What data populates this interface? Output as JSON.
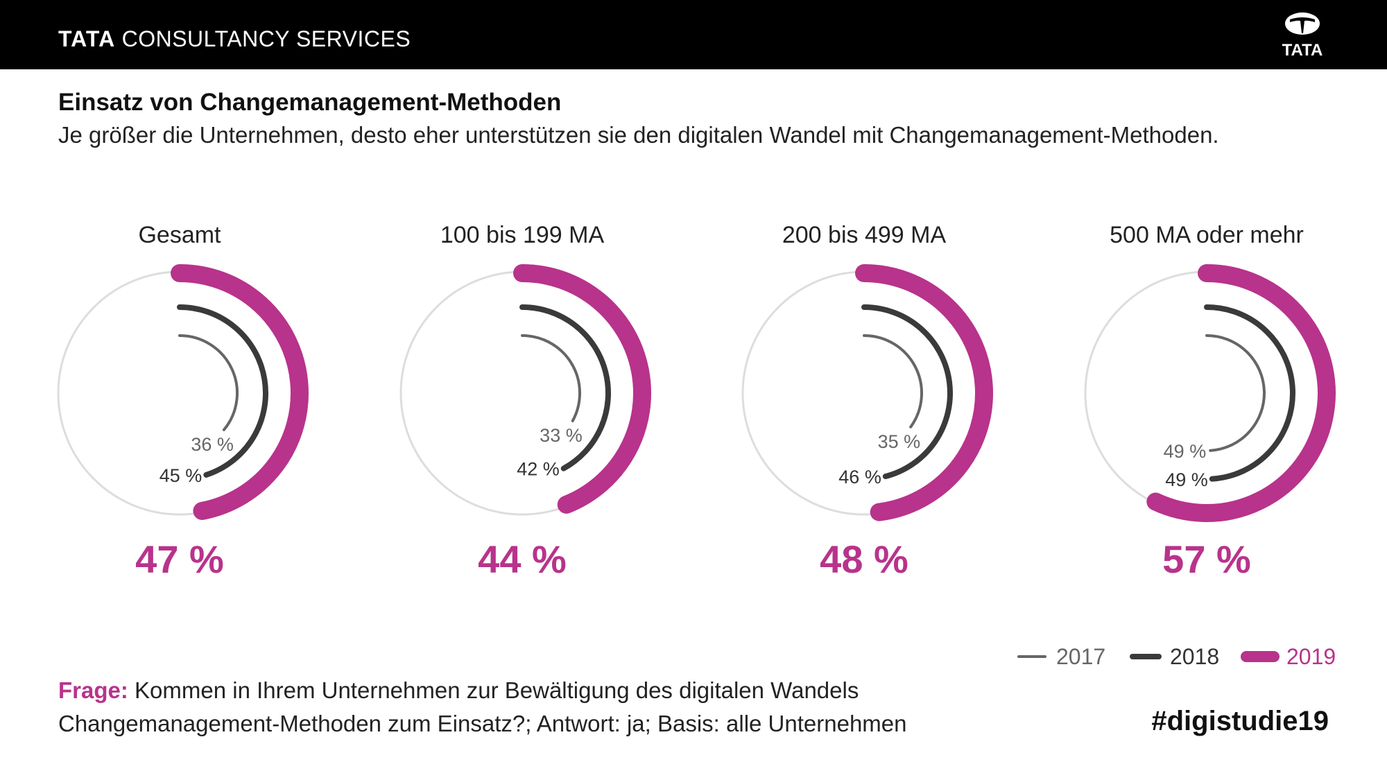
{
  "header": {
    "brand_bold": "TATA",
    "brand_rest": "CONSULTANCY SERVICES",
    "logo_text": "TATA"
  },
  "title": "Einsatz von Changemanagement-Methoden",
  "subtitle": "Je größer die Unternehmen, desto eher unterstützen sie den digitalen Wandel mit Changemanagement-Methoden.",
  "chart_data": {
    "type": "radial-bar",
    "categories": [
      "Gesamt",
      "100 bis 199 MA",
      "200 bis 499 MA",
      "500 MA oder mehr"
    ],
    "series": [
      {
        "name": "2017",
        "values": [
          36,
          33,
          35,
          49
        ],
        "color": "#666666"
      },
      {
        "name": "2018",
        "values": [
          45,
          42,
          46,
          49
        ],
        "color": "#3a3a3a"
      },
      {
        "name": "2019",
        "values": [
          47,
          44,
          48,
          57
        ],
        "color": "#b8338b"
      }
    ],
    "value_labels": {
      "2017": [
        "36 %",
        "33 %",
        "35 %",
        "49 %"
      ],
      "2018": [
        "45 %",
        "42 %",
        "46 %",
        "49 %"
      ],
      "2019": [
        "47 %",
        "44 %",
        "48 %",
        "57 %"
      ]
    },
    "range": [
      0,
      100
    ],
    "track_color": "#dddddd",
    "legend": {
      "position": "bottom-right",
      "items": [
        "2017",
        "2018",
        "2019"
      ]
    }
  },
  "footer": {
    "question_label": "Frage:",
    "question_line1": "Kommen in Ihrem Unternehmen zur Bewältigung des digitalen Wandels",
    "question_line2": "Changemanagement-Methoden zum Einsatz?; Antwort: ja; Basis: alle Unternehmen",
    "hashtag": "#digistudie19"
  },
  "colors": {
    "accent": "#b8338b",
    "header_bg": "#000000"
  }
}
